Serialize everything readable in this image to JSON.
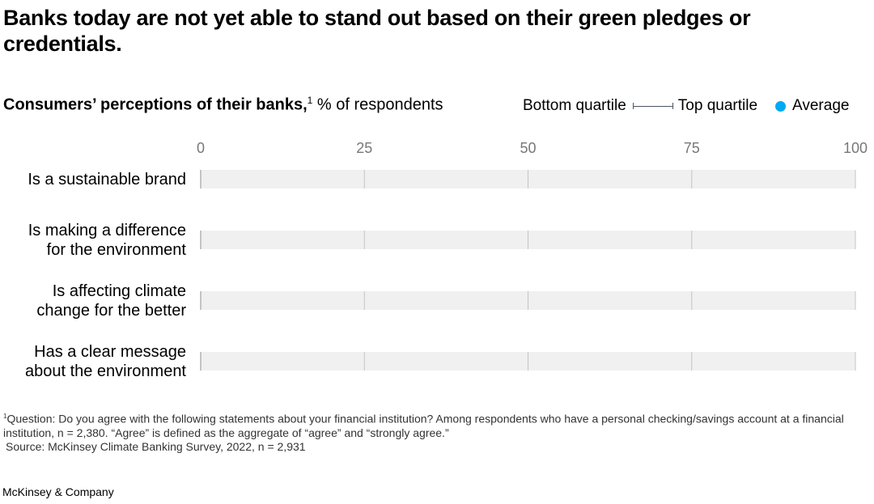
{
  "title": "Banks today are not yet able to stand out based on their green pledges or credentials.",
  "subtitle": {
    "bold": "Consumers’ perceptions of their banks,",
    "footnote_mark": "1",
    "unit": " % of respondents"
  },
  "legend": {
    "bottom": "Bottom quartile",
    "top": "Top quartile",
    "average": "Average"
  },
  "colors": {
    "track": "#f0f0f0",
    "grid": "#c4c4c4",
    "average": "#00a9f4",
    "range": "#4a5560",
    "tick": "#777777"
  },
  "chart_data": {
    "type": "range-dot",
    "title": "Consumers’ perceptions of their banks,",
    "xlabel": "% of respondents",
    "xlim": [
      0,
      100
    ],
    "ticks": [
      "0",
      "25",
      "50",
      "75",
      "100"
    ],
    "grid": true,
    "legend_position": "top-right",
    "categories": [
      [
        "Is a sustainable brand"
      ],
      [
        "Is making a difference",
        "for the environment"
      ],
      [
        "Is affecting climate",
        "change for the better"
      ],
      [
        "Has a clear message",
        "about the environment"
      ]
    ],
    "series": []
  },
  "footnotes": {
    "mark": "1",
    "note": "Question: Do you agree with the following statements about your financial institution? Among respondents who have a personal checking/savings account at a financial institution, n = 2,380. “Agree” is defined as the aggregate of “agree” and “strongly agree.”",
    "source": "Source: McKinsey Climate Banking Survey, 2022, n = 2,931"
  },
  "brand": "McKinsey & Company"
}
